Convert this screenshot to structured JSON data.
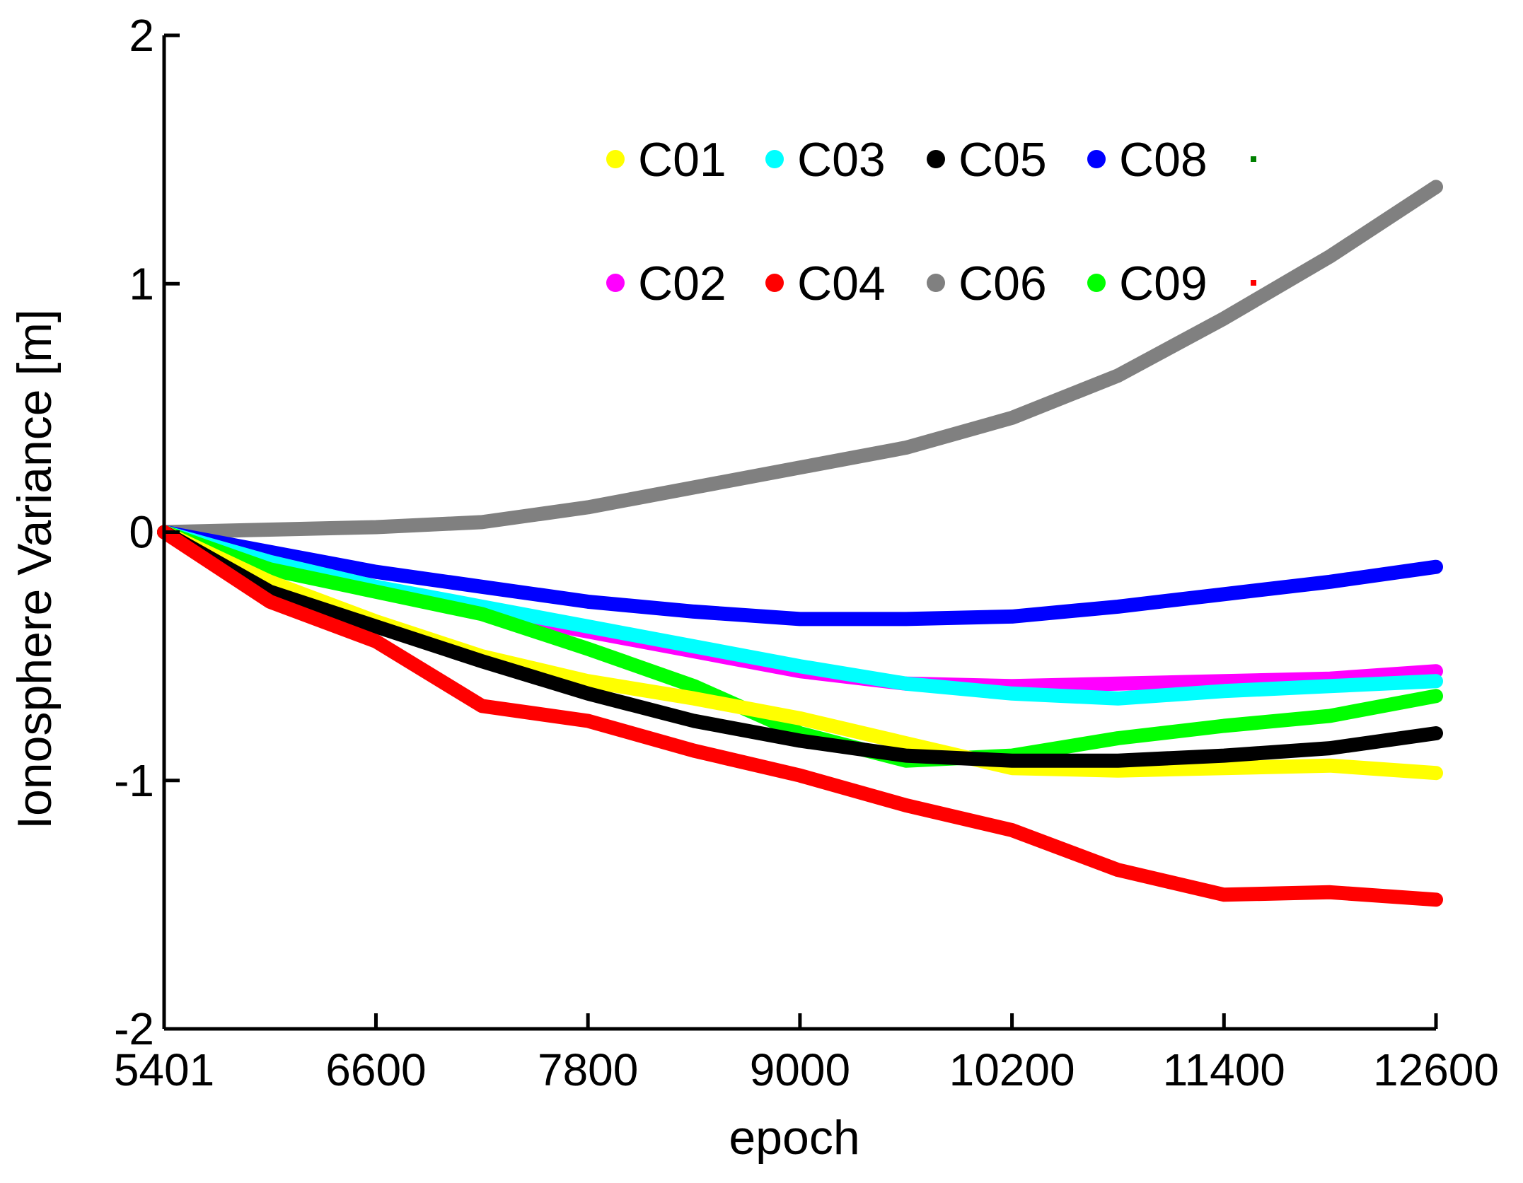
{
  "chart_data": {
    "type": "line",
    "title": "",
    "xlabel": "epoch",
    "ylabel": "Ionosphere Variance [m]",
    "xlim": [
      5401,
      12600
    ],
    "ylim": [
      -2,
      2
    ],
    "xticks": [
      5401,
      6600,
      7800,
      9000,
      10200,
      11400,
      12600
    ],
    "xtick_labels": [
      "5401",
      "6600",
      "7800",
      "9000",
      "10200",
      "11400",
      "12600"
    ],
    "yticks": [
      -2,
      -1,
      0,
      1,
      2
    ],
    "ytick_labels": [
      "-2",
      "-1",
      "0",
      "1",
      "2"
    ],
    "grid": false,
    "legend_position": "top-right",
    "legend": [
      {
        "name": "C01",
        "color": "#ffff00"
      },
      {
        "name": "C03",
        "color": "#00ffff"
      },
      {
        "name": "C05",
        "color": "#000000"
      },
      {
        "name": "C08",
        "color": "#0000ff"
      },
      {
        "name": "",
        "color": "#008000"
      },
      {
        "name": "C02",
        "color": "#ff00ff"
      },
      {
        "name": "C04",
        "color": "#ff0000"
      },
      {
        "name": "C06",
        "color": "#808080"
      },
      {
        "name": "C09",
        "color": "#00ff00"
      },
      {
        "name": "",
        "color": "#ff0000"
      }
    ],
    "series": [
      {
        "name": "C06",
        "color": "#808080",
        "x": [
          5401,
          6000,
          6600,
          7200,
          7800,
          8400,
          9000,
          9600,
          10200,
          10800,
          11400,
          12000,
          12600
        ],
        "values": [
          0,
          0.01,
          0.02,
          0.04,
          0.1,
          0.18,
          0.26,
          0.34,
          0.46,
          0.63,
          0.86,
          1.11,
          1.39
        ]
      },
      {
        "name": "C08",
        "color": "#0000ff",
        "x": [
          5401,
          6000,
          6600,
          7200,
          7800,
          8400,
          9000,
          9600,
          10200,
          10800,
          11400,
          12000,
          12600
        ],
        "values": [
          0,
          -0.08,
          -0.16,
          -0.22,
          -0.28,
          -0.32,
          -0.35,
          -0.35,
          -0.34,
          -0.3,
          -0.25,
          -0.2,
          -0.14
        ]
      },
      {
        "name": "C02",
        "color": "#ff00ff",
        "x": [
          5401,
          6000,
          6600,
          7200,
          7800,
          8400,
          9000,
          9600,
          10200,
          10800,
          11400,
          12000,
          12600
        ],
        "values": [
          0,
          -0.12,
          -0.22,
          -0.32,
          -0.4,
          -0.48,
          -0.56,
          -0.61,
          -0.62,
          -0.61,
          -0.6,
          -0.59,
          -0.56
        ]
      },
      {
        "name": "C03",
        "color": "#00ffff",
        "x": [
          5401,
          6000,
          6600,
          7200,
          7800,
          8400,
          9000,
          9600,
          10200,
          10800,
          11400,
          12000,
          12600
        ],
        "values": [
          0,
          -0.12,
          -0.22,
          -0.3,
          -0.38,
          -0.46,
          -0.54,
          -0.61,
          -0.65,
          -0.67,
          -0.64,
          -0.62,
          -0.6
        ]
      },
      {
        "name": "C09",
        "color": "#00ff00",
        "x": [
          5401,
          6000,
          6600,
          7200,
          7800,
          8400,
          9000,
          9600,
          10200,
          10800,
          11400,
          12000,
          12600
        ],
        "values": [
          0,
          -0.15,
          -0.24,
          -0.33,
          -0.47,
          -0.62,
          -0.81,
          -0.92,
          -0.9,
          -0.83,
          -0.78,
          -0.74,
          -0.66
        ]
      },
      {
        "name": "C01",
        "color": "#ffff00",
        "x": [
          5401,
          6000,
          6600,
          7200,
          7800,
          8400,
          9000,
          9600,
          10200,
          10800,
          11400,
          12000,
          12600
        ],
        "values": [
          0,
          -0.2,
          -0.36,
          -0.5,
          -0.6,
          -0.67,
          -0.75,
          -0.85,
          -0.95,
          -0.96,
          -0.95,
          -0.94,
          -0.97
        ]
      },
      {
        "name": "C05",
        "color": "#000000",
        "x": [
          5401,
          6000,
          6600,
          7200,
          7800,
          8400,
          9000,
          9600,
          10200,
          10800,
          11400,
          12000,
          12600
        ],
        "values": [
          0,
          -0.24,
          -0.38,
          -0.52,
          -0.65,
          -0.76,
          -0.84,
          -0.9,
          -0.92,
          -0.92,
          -0.9,
          -0.87,
          -0.81
        ]
      },
      {
        "name": "C04",
        "color": "#ff0000",
        "x": [
          5401,
          6000,
          6600,
          7200,
          7800,
          8400,
          9000,
          9600,
          10200,
          10800,
          11400,
          12000,
          12600
        ],
        "values": [
          0,
          -0.28,
          -0.44,
          -0.7,
          -0.76,
          -0.88,
          -0.98,
          -1.1,
          -1.2,
          -1.36,
          -1.46,
          -1.45,
          -1.48
        ]
      }
    ]
  }
}
